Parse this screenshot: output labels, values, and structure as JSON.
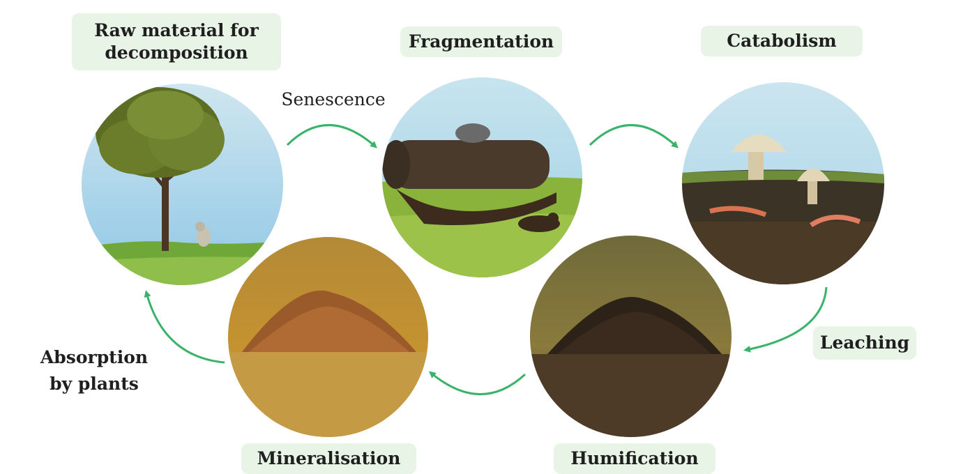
{
  "labels": {
    "raw_material": "Raw material for decomposition",
    "fragmentation": "Fragmentation",
    "catabolism": "Catabolism",
    "senescence": "Senescence",
    "leaching": "Leaching",
    "absorption": "Absorption by plants",
    "mineralisation": "Mineralisation",
    "humification": "Humification"
  },
  "colors": {
    "pill_background": "#e7f4e6",
    "arrow": "#3ab36a"
  }
}
